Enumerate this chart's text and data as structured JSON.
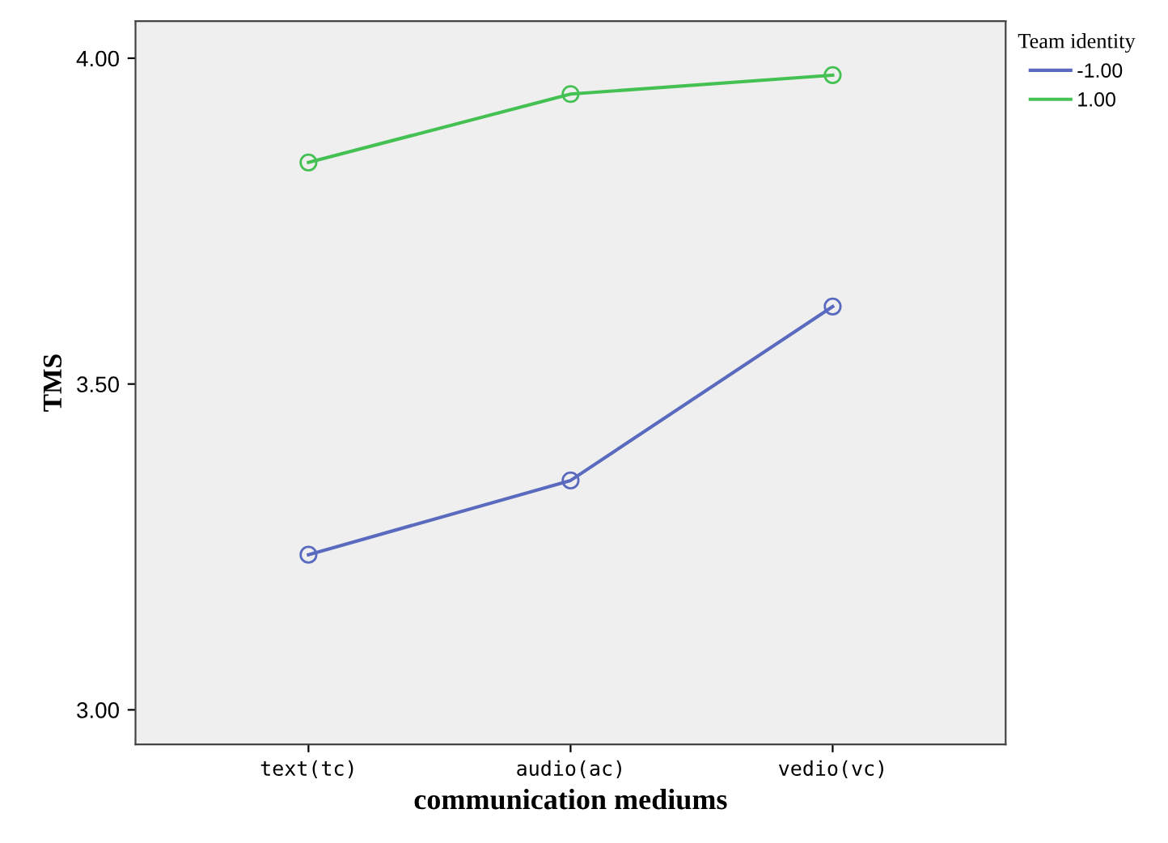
{
  "chart_data": {
    "type": "line",
    "xlabel": "communication mediums",
    "ylabel": "TMS",
    "legend_title": "Team identity",
    "categories": [
      "text(tc)",
      "audio(ac)",
      "vedio(vc)"
    ],
    "series": [
      {
        "name": "-1.00",
        "color": "#5a6bbf",
        "values": [
          3.238,
          3.352,
          3.619
        ]
      },
      {
        "name": "1.00",
        "color": "#45c153",
        "values": [
          3.84,
          3.945,
          3.974
        ]
      }
    ],
    "ylim": [
      2.947,
      4.057
    ],
    "yticks": [
      {
        "value": 3.0,
        "label": "3.00"
      },
      {
        "value": 3.5,
        "label": "3.50"
      },
      {
        "value": 4.0,
        "label": "4.00"
      }
    ],
    "grid": false,
    "legend": "right",
    "marker": "circle",
    "line_style": "solid"
  }
}
